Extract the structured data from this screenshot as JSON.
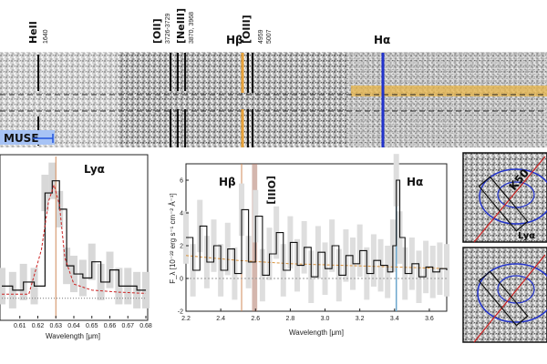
{
  "figure": {
    "top_panel": {
      "line_labels": [
        {
          "name": "HeII",
          "sub": "1640"
        },
        {
          "name": "[OII]",
          "sub": "3726-3729"
        },
        {
          "name": "[NeIII]",
          "sub": "3870, 3968"
        },
        {
          "name": "Hβ",
          "sub": ""
        },
        {
          "name": "[OIII]",
          "sub": "4959\n5007"
        },
        {
          "name": "Hα",
          "sub": ""
        }
      ],
      "muse_label": "MUSE",
      "colors": {
        "orange": "#e8a33a",
        "blue": "#2233cc",
        "muse_blue": "#3b6fe0"
      }
    },
    "left_panel": {
      "title": "Lyα",
      "xlabel": "Wavelength [μm]"
    },
    "middle_panel": {
      "xlabel": "Wavelength [μm]",
      "ylabel": "F_λ [10⁻²² erg s⁻¹ cm⁻² Å⁻¹]",
      "annotations": [
        "Hβ",
        "[OIII]",
        "Hα"
      ]
    },
    "right_panels": {
      "top_labels": [
        "K50",
        "Lyα"
      ]
    }
  },
  "chart_data": [
    {
      "type": "line",
      "title": "Lyα",
      "xlabel": "Wavelength [μm]",
      "xlim": [
        0.6,
        0.68
      ],
      "xticks": [
        "0.61",
        "0.62",
        "0.63",
        "0.64",
        "0.65",
        "0.66",
        "0.67",
        "0.68"
      ],
      "xtick_values": [
        0.61,
        0.62,
        0.63,
        0.64,
        0.65,
        0.66,
        0.67,
        0.68
      ],
      "ylim": [
        -0.5,
        3.5
      ],
      "vline": 0.63,
      "series": [
        {
          "name": "data",
          "x": [
            0.6,
            0.606,
            0.612,
            0.618,
            0.624,
            0.628,
            0.632,
            0.636,
            0.64,
            0.645,
            0.65,
            0.655,
            0.66,
            0.665,
            0.67,
            0.675,
            0.68
          ],
          "values": [
            0.3,
            0.2,
            0.4,
            0.3,
            2.6,
            2.9,
            2.2,
            0.8,
            0.6,
            0.5,
            0.9,
            0.4,
            0.7,
            0.3,
            0.3,
            0.2,
            0.2
          ]
        },
        {
          "name": "model",
          "x": [
            0.6,
            0.615,
            0.622,
            0.626,
            0.629,
            0.632,
            0.635,
            0.64,
            0.65,
            0.665,
            0.68
          ],
          "values": [
            0.1,
            0.1,
            1.2,
            2.4,
            2.8,
            2.3,
            1.0,
            0.35,
            0.2,
            0.15,
            0.12
          ]
        }
      ]
    },
    {
      "type": "line",
      "xlabel": "Wavelength [μm]",
      "ylabel": "F_λ [10⁻²² erg s⁻¹ cm⁻² Å⁻¹]",
      "xlim": [
        2.2,
        3.7
      ],
      "ylim": [
        -2,
        7
      ],
      "xticks": [
        "2.2",
        "2.4",
        "2.6",
        "2.8",
        "3.0",
        "3.2",
        "3.4",
        "3.6"
      ],
      "xtick_values": [
        2.2,
        2.4,
        2.6,
        2.8,
        3.0,
        3.2,
        3.4,
        3.6
      ],
      "yticks": [
        "-2",
        "0",
        "2",
        "4",
        "6"
      ],
      "ytick_values": [
        -2,
        0,
        2,
        4,
        6
      ],
      "vlines": [
        2.52,
        2.59,
        3.41
      ],
      "series": [
        {
          "name": "data",
          "x": [
            2.2,
            2.24,
            2.28,
            2.32,
            2.36,
            2.4,
            2.44,
            2.48,
            2.52,
            2.56,
            2.6,
            2.64,
            2.68,
            2.72,
            2.76,
            2.8,
            2.84,
            2.88,
            2.92,
            2.96,
            3.0,
            3.04,
            3.08,
            3.12,
            3.16,
            3.2,
            3.24,
            3.28,
            3.32,
            3.36,
            3.39,
            3.41,
            3.43,
            3.46,
            3.5,
            3.54,
            3.58,
            3.62,
            3.66,
            3.7
          ],
          "values": [
            2.5,
            0.5,
            3.2,
            1.0,
            2.0,
            0.5,
            1.8,
            0.3,
            4.2,
            1.0,
            3.8,
            0.2,
            1.5,
            2.8,
            0.5,
            2.2,
            0.8,
            1.9,
            0.1,
            1.6,
            0.6,
            2.0,
            0.2,
            1.4,
            0.9,
            1.7,
            0.3,
            1.1,
            0.8,
            0.4,
            2.0,
            6.0,
            2.5,
            0.3,
            0.9,
            0.1,
            0.7,
            0.4,
            0.6,
            0.5
          ]
        },
        {
          "name": "continuum",
          "x": [
            2.2,
            2.5,
            2.8,
            3.1,
            3.4,
            3.7
          ],
          "values": [
            1.4,
            1.1,
            0.9,
            0.8,
            0.7,
            0.6
          ]
        }
      ]
    }
  ]
}
